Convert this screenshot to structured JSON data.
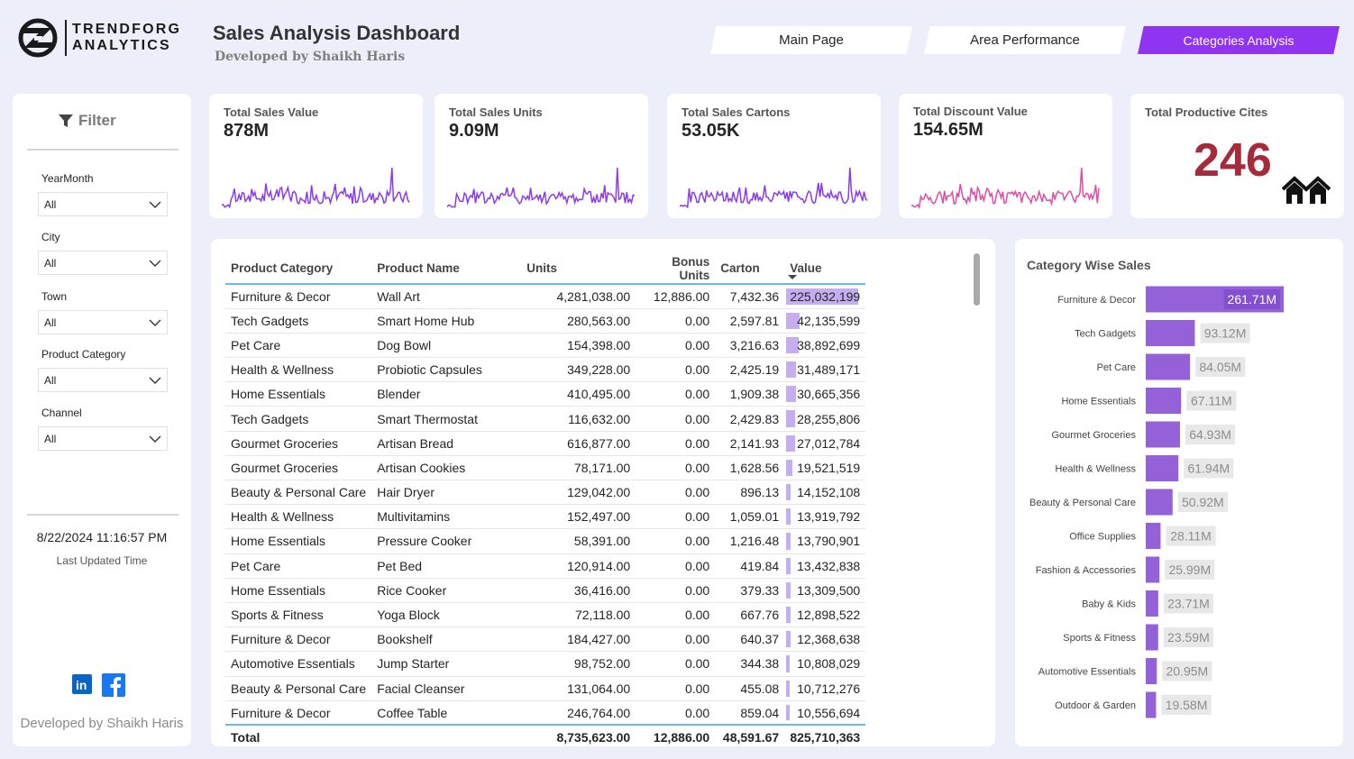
{
  "brand": {
    "line1": "TRENDFORG",
    "line2": "ANALYTICS"
  },
  "header": {
    "title": "Sales Analysis Dashboard",
    "subtitle": "Developed by Shaikh Haris"
  },
  "tabs": [
    {
      "label": "Main Page",
      "active": false
    },
    {
      "label": "Area Performance",
      "active": false
    },
    {
      "label": "Categories Analysis",
      "active": true
    }
  ],
  "filter": {
    "title": "Filter",
    "slicers": [
      {
        "label": "YearMonth",
        "value": "All"
      },
      {
        "label": "City",
        "value": "All"
      },
      {
        "label": "Town",
        "value": "All"
      },
      {
        "label": "Product Category",
        "value": "All"
      },
      {
        "label": "Channel",
        "value": "All"
      }
    ],
    "updated_time": "8/22/2024 11:16:57 PM",
    "updated_label": "Last Updated Time",
    "footer": "Developed by Shaikh Haris"
  },
  "kpis": [
    {
      "label": "Total Sales Value",
      "value": "878M",
      "color": "#8b3ce6"
    },
    {
      "label": "Total Sales Units",
      "value": "9.09M",
      "color": "#8b3ce6"
    },
    {
      "label": "Total Sales Cartons",
      "value": "53.05K",
      "color": "#8b3ce6"
    },
    {
      "label": "Total Discount Value",
      "value": "154.65M",
      "color": "#d94fa8"
    },
    {
      "label": "Total Productive Cites",
      "value": "246"
    }
  ],
  "table": {
    "columns": [
      "Product Category",
      "Product Name",
      "Units",
      "Bonus Units",
      "Carton",
      "Value"
    ],
    "rows": [
      [
        "Furniture & Decor",
        "Wall Art",
        "4,281,038.00",
        "12,886.00",
        "7,432.36",
        "225,032,199"
      ],
      [
        "Tech Gadgets",
        "Smart Home Hub",
        "280,563.00",
        "0.00",
        "2,597.81",
        "42,135,599"
      ],
      [
        "Pet Care",
        "Dog Bowl",
        "154,398.00",
        "0.00",
        "3,216.63",
        "38,892,699"
      ],
      [
        "Health & Wellness",
        "Probiotic Capsules",
        "349,228.00",
        "0.00",
        "2,425.19",
        "31,489,171"
      ],
      [
        "Home Essentials",
        "Blender",
        "410,495.00",
        "0.00",
        "1,909.38",
        "30,665,356"
      ],
      [
        "Tech Gadgets",
        "Smart Thermostat",
        "116,632.00",
        "0.00",
        "2,429.83",
        "28,255,806"
      ],
      [
        "Gourmet Groceries",
        "Artisan Bread",
        "616,877.00",
        "0.00",
        "2,141.93",
        "27,012,784"
      ],
      [
        "Gourmet Groceries",
        "Artisan Cookies",
        "78,171.00",
        "0.00",
        "1,628.56",
        "19,521,519"
      ],
      [
        "Beauty & Personal Care",
        "Hair Dryer",
        "129,042.00",
        "0.00",
        "896.13",
        "14,152,108"
      ],
      [
        "Health & Wellness",
        "Multivitamins",
        "152,497.00",
        "0.00",
        "1,059.01",
        "13,919,792"
      ],
      [
        "Home Essentials",
        "Pressure Cooker",
        "58,391.00",
        "0.00",
        "1,216.48",
        "13,790,901"
      ],
      [
        "Pet Care",
        "Pet Bed",
        "120,914.00",
        "0.00",
        "419.84",
        "13,432,838"
      ],
      [
        "Home Essentials",
        "Rice Cooker",
        "36,416.00",
        "0.00",
        "379.33",
        "13,309,500"
      ],
      [
        "Sports & Fitness",
        "Yoga Block",
        "72,118.00",
        "0.00",
        "667.76",
        "12,898,522"
      ],
      [
        "Furniture & Decor",
        "Bookshelf",
        "184,427.00",
        "0.00",
        "640.37",
        "12,368,638"
      ],
      [
        "Automotive Essentials",
        "Jump Starter",
        "98,752.00",
        "0.00",
        "344.38",
        "10,808,029"
      ],
      [
        "Beauty & Personal Care",
        "Facial Cleanser",
        "131,064.00",
        "0.00",
        "455.08",
        "10,712,276"
      ],
      [
        "Furniture & Decor",
        "Coffee Table",
        "246,764.00",
        "0.00",
        "859.04",
        "10,556,694"
      ]
    ],
    "total": [
      "Total",
      "",
      "8,735,623.00",
      "12,886.00",
      "48,591.67",
      "825,710,363"
    ],
    "max_value": 225032199
  },
  "chart_data": {
    "type": "bar",
    "orientation": "horizontal",
    "title": "Category Wise Sales",
    "categories": [
      "Furniture & Decor",
      "Tech Gadgets",
      "Pet Care",
      "Home Essentials",
      "Gourmet Groceries",
      "Health & Wellness",
      "Beauty & Personal Care",
      "Office Supplies",
      "Fashion & Accessories",
      "Baby & Kids",
      "Sports & Fitness",
      "Automotive Essentials",
      "Outdoor & Garden"
    ],
    "values": [
      261.71,
      93.12,
      84.05,
      67.11,
      64.93,
      61.94,
      50.92,
      28.11,
      25.99,
      23.71,
      23.59,
      20.95,
      19.58
    ],
    "labels": [
      "261.71M",
      "93.12M",
      "84.05M",
      "67.11M",
      "64.93M",
      "61.94M",
      "50.92M",
      "28.11M",
      "25.99M",
      "23.71M",
      "23.59M",
      "20.95M",
      "19.58M"
    ],
    "unit": "M",
    "bar_color": "#9461d8"
  }
}
